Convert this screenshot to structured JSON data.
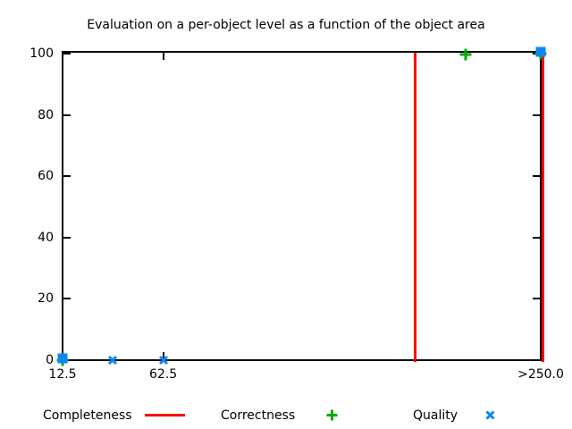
{
  "title": "Evaluation on a per-object level as a function of the object area",
  "legend": {
    "items": [
      {
        "label": "Completeness",
        "swatch": "line",
        "color": "#ff0000"
      },
      {
        "label": "Correctness",
        "swatch": "plus",
        "color": "#00ad00"
      },
      {
        "label": "Quality",
        "swatch": "cross",
        "color": "#0d87f0"
      }
    ]
  },
  "chart_data": {
    "type": "scatter",
    "title": "Evaluation on a per-object level as a function of the object area",
    "xlabel": "",
    "ylabel": "",
    "grid": false,
    "legend_position": "below-plot",
    "x_axis": {
      "range": [
        12.5,
        250
      ],
      "tick_values": [
        12.5,
        62.5,
        250
      ],
      "tick_labels": [
        "12.5",
        "62.5",
        ">250.0"
      ]
    },
    "y_axis": {
      "range": [
        0,
        100
      ],
      "tick_values": [
        0,
        20,
        40,
        60,
        80,
        100
      ],
      "tick_labels": [
        "0",
        "20",
        "40",
        "60",
        "80",
        "100"
      ]
    },
    "series": [
      {
        "name": "Completeness",
        "style": "impulses",
        "color": "#ff0000",
        "points": [
          {
            "x": 187.5,
            "y": 100
          },
          {
            "x": 250,
            "y": 100
          }
        ]
      },
      {
        "name": "Correctness",
        "style": "points",
        "marker": "plus",
        "color": "#00ad00",
        "points": [
          {
            "x": 12.5,
            "y": 0
          },
          {
            "x": 212.5,
            "y": 99.7
          },
          {
            "x": 250,
            "y": 100
          }
        ]
      },
      {
        "name": "Quality",
        "style": "points",
        "marker": "cross",
        "color": "#0d87f0",
        "points": [
          {
            "x": 12.5,
            "y": 0,
            "marker": "square"
          },
          {
            "x": 37.5,
            "y": 0
          },
          {
            "x": 62.5,
            "y": 0
          },
          {
            "x": 250,
            "y": 100,
            "marker": "square"
          }
        ]
      }
    ]
  }
}
